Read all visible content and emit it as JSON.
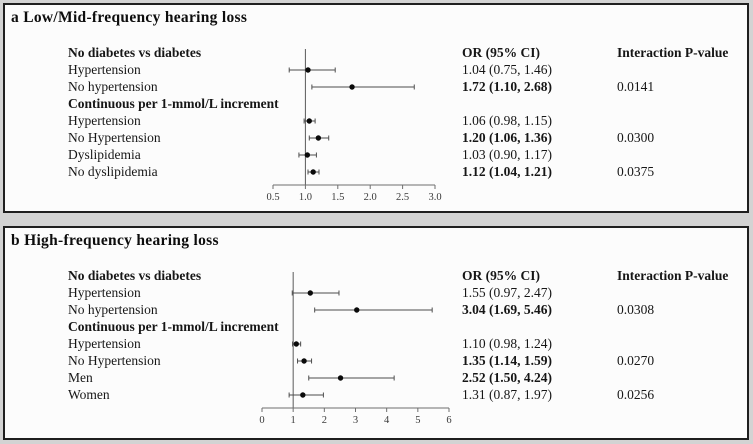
{
  "colors": {
    "page_bg": "#d3d3d3",
    "panel_bg": "#fcfcfc",
    "panel_border": "#1f1f1f",
    "text": "#161616",
    "ci_line": "#4d4d4d",
    "marker": "#0a0a0a",
    "axis": "#6e6e6e",
    "ref_line": "#5a5a5a",
    "tick_label": "#3a3a3a"
  },
  "chart_data": [
    {
      "type": "scatter",
      "subtype": "forest-plot",
      "title": "a Low/Mid-frequency hearing loss",
      "or_header": "OR (95% CI)",
      "p_header": "Interaction P-value",
      "xlim": [
        0.5,
        3.0
      ],
      "ref_line": 1.0,
      "tick_values": [
        0.5,
        1.0,
        1.5,
        2.0,
        2.5,
        3.0
      ],
      "tick_labels": [
        "0.5",
        "1.0",
        "1.5",
        "2.0",
        "2.5",
        "3.0"
      ],
      "grid": false,
      "rows": [
        {
          "label": "No diabetes vs diabetes",
          "group": true
        },
        {
          "label": "Hypertension",
          "or": 1.04,
          "ci": [
            0.75,
            1.46
          ],
          "or_text": "1.04 (0.75, 1.46)",
          "bold": false,
          "p": ""
        },
        {
          "label": "No hypertension",
          "or": 1.72,
          "ci": [
            1.1,
            2.68
          ],
          "or_text": "1.72 (1.10, 2.68)",
          "bold": true,
          "p": "0.0141"
        },
        {
          "label": "Continuous per 1-mmol/L increment",
          "group": true
        },
        {
          "label": "Hypertension",
          "or": 1.06,
          "ci": [
            0.98,
            1.15
          ],
          "or_text": "1.06 (0.98, 1.15)",
          "bold": false,
          "p": ""
        },
        {
          "label": "No Hypertension",
          "or": 1.2,
          "ci": [
            1.06,
            1.36
          ],
          "or_text": "1.20 (1.06, 1.36)",
          "bold": true,
          "p": "0.0300"
        },
        {
          "label": "Dyslipidemia",
          "or": 1.03,
          "ci": [
            0.9,
            1.17
          ],
          "or_text": "1.03 (0.90, 1.17)",
          "bold": false,
          "p": ""
        },
        {
          "label": "No dyslipidemia",
          "or": 1.12,
          "ci": [
            1.04,
            1.21
          ],
          "or_text": "1.12 (1.04, 1.21)",
          "bold": true,
          "p": "0.0375"
        }
      ]
    },
    {
      "type": "scatter",
      "subtype": "forest-plot",
      "title": "b High-frequency hearing loss",
      "or_header": "OR (95% CI)",
      "p_header": "Interaction P-value",
      "xlim": [
        0,
        6
      ],
      "ref_line": 1,
      "tick_values": [
        0,
        1,
        2,
        3,
        4,
        5,
        6
      ],
      "tick_labels": [
        "0",
        "1",
        "2",
        "3",
        "4",
        "5",
        "6"
      ],
      "grid": false,
      "rows": [
        {
          "label": "No diabetes vs diabetes",
          "group": true
        },
        {
          "label": "Hypertension",
          "or": 1.55,
          "ci": [
            0.97,
            2.47
          ],
          "or_text": "1.55 (0.97, 2.47)",
          "bold": false,
          "p": ""
        },
        {
          "label": "No hypertension",
          "or": 3.04,
          "ci": [
            1.69,
            5.46
          ],
          "or_text": "3.04 (1.69, 5.46)",
          "bold": true,
          "p": "0.0308"
        },
        {
          "label": "Continuous per 1-mmol/L increment",
          "group": true
        },
        {
          "label": "Hypertension",
          "or": 1.1,
          "ci": [
            0.98,
            1.24
          ],
          "or_text": "1.10 (0.98, 1.24)",
          "bold": false,
          "p": ""
        },
        {
          "label": "No Hypertension",
          "or": 1.35,
          "ci": [
            1.14,
            1.59
          ],
          "or_text": "1.35 (1.14, 1.59)",
          "bold": true,
          "p": "0.0270"
        },
        {
          "label": "Men",
          "or": 2.52,
          "ci": [
            1.5,
            4.24
          ],
          "or_text": "2.52 (1.50, 4.24)",
          "bold": true,
          "p": ""
        },
        {
          "label": "Women",
          "or": 1.31,
          "ci": [
            0.87,
            1.97
          ],
          "or_text": "1.31 (0.87, 1.97)",
          "bold": false,
          "p": "0.0256"
        }
      ]
    }
  ]
}
